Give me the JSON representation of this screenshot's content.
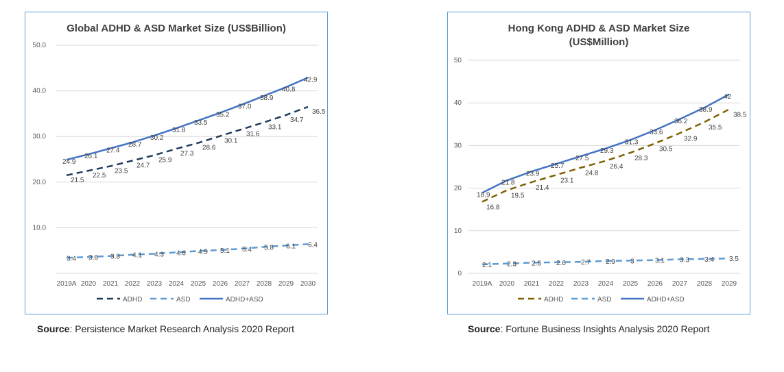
{
  "chart_data": [
    {
      "type": "line",
      "title": "Global ADHD & ASD Market Size (US$Billion)",
      "title_lines": [
        "Global ADHD & ASD Market Size (US$Billion)"
      ],
      "categories": [
        "2019A",
        "2020",
        "2021",
        "2022",
        "2023",
        "2024",
        "2025",
        "2026",
        "2027",
        "2028",
        "2029",
        "2030"
      ],
      "ylim": [
        0,
        50
      ],
      "yticks": [
        "",
        "10.0",
        "20.0",
        "30.0",
        "40.0",
        "50.0"
      ],
      "series": [
        {
          "name": "ADHD",
          "color": "#1f3b5c",
          "dash": "long",
          "values": [
            21.5,
            22.5,
            23.5,
            24.7,
            25.9,
            27.3,
            28.6,
            30.1,
            31.6,
            33.1,
            34.7,
            36.5
          ]
        },
        {
          "name": "ASD",
          "color": "#5b9bd5",
          "dash": "long",
          "values": [
            3.4,
            3.6,
            3.8,
            4.1,
            4.3,
            4.6,
            4.9,
            5.1,
            5.4,
            5.8,
            6.1,
            6.4
          ]
        },
        {
          "name": "ADHD+ASD",
          "color": "#4472c4",
          "dash": "solid",
          "values": [
            24.9,
            26.1,
            27.4,
            28.7,
            30.2,
            31.8,
            33.5,
            35.2,
            37.0,
            38.9,
            40.8,
            42.9
          ]
        }
      ],
      "data_labels": {
        "ADHD": [
          "21.5",
          "22.5",
          "23.5",
          "24.7",
          "25.9",
          "27.3",
          "28.6",
          "30.1",
          "31.6",
          "33.1",
          "34.7",
          "36.5"
        ],
        "ASD": [
          "3.4",
          "3.6",
          "3.8",
          "4.1",
          "4.3",
          "4.6",
          "4.9",
          "5.1",
          "5.4",
          "5.8",
          "6.1",
          "6.4"
        ],
        "ADHD+ASD": [
          "24.9",
          "26.1",
          "27.4",
          "28.7",
          "30.2",
          "31.8",
          "33.5",
          "35.2",
          "37.0",
          "38.9",
          "40.8",
          "42.9"
        ]
      },
      "legend": "bottom"
    },
    {
      "type": "line",
      "title": "Hong Kong ADHD & ASD Market Size (US$Million)",
      "title_lines": [
        "Hong Kong ADHD & ASD Market Size",
        "(US$Million)"
      ],
      "categories": [
        "2019A",
        "2020",
        "2021",
        "2022",
        "2023",
        "2024",
        "2025",
        "2026",
        "2027",
        "2028",
        "2029"
      ],
      "ylim": [
        0,
        50
      ],
      "yticks": [
        "0",
        "10",
        "20",
        "30",
        "40",
        "50"
      ],
      "series": [
        {
          "name": "ADHD",
          "color": "#7f6000",
          "dash": "long",
          "values": [
            16.8,
            19.5,
            21.4,
            23.1,
            24.8,
            26.4,
            28.3,
            30.5,
            32.9,
            35.5,
            38.5
          ]
        },
        {
          "name": "ASD",
          "color": "#5b9bd5",
          "dash": "long",
          "values": [
            2.1,
            2.3,
            2.5,
            2.6,
            2.7,
            2.9,
            3.0,
            3.1,
            3.3,
            3.4,
            3.5
          ]
        },
        {
          "name": "ADHD+ASD",
          "color": "#4472c4",
          "dash": "solid",
          "values": [
            18.9,
            21.8,
            23.9,
            25.7,
            27.5,
            29.3,
            31.3,
            33.6,
            36.2,
            38.9,
            42
          ]
        }
      ],
      "data_labels": {
        "ADHD": [
          "16.8",
          "19.5",
          "21.4",
          "23.1",
          "24.8",
          "26.4",
          "28.3",
          "30.5",
          "32.9",
          "35.5",
          "38.5"
        ],
        "ASD": [
          "2.1",
          "2.3",
          "2.5",
          "2.6",
          "2.7",
          "2.9",
          "3",
          "3.1",
          "3.3",
          "3.4",
          "3.5"
        ],
        "ADHD+ASD": [
          "18.9",
          "21.8",
          "23.9",
          "25.7",
          "27.5",
          "29.3",
          "31.3",
          "33.6",
          "36.2",
          "38.9",
          "42"
        ]
      },
      "legend": "bottom"
    }
  ],
  "sources": [
    {
      "prefix": "Source",
      "text": ": Persistence Market Research Analysis 2020 Report"
    },
    {
      "prefix": "Source",
      "text": ": Fortune Business Insights Analysis 2020 Report"
    }
  ]
}
